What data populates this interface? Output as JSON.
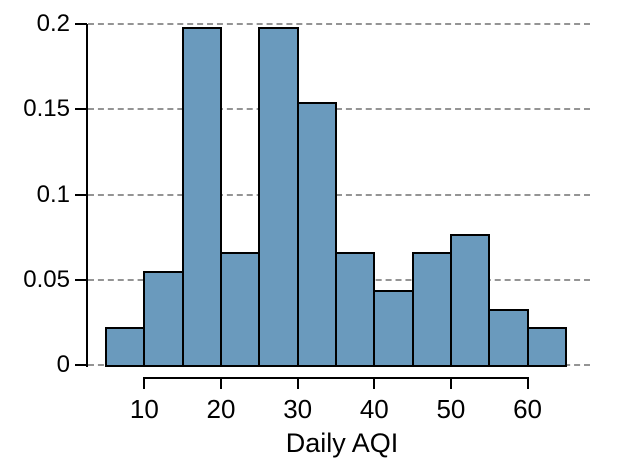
{
  "chart_data": {
    "type": "bar",
    "subtype": "histogram",
    "title": "",
    "xlabel": "Daily AQI",
    "ylabel": "",
    "bin_width": 5,
    "bin_start": 5,
    "bin_edges": [
      5,
      10,
      15,
      20,
      25,
      30,
      35,
      40,
      45,
      50,
      55,
      60,
      65
    ],
    "values": [
      0.022,
      0.055,
      0.198,
      0.066,
      0.198,
      0.154,
      0.066,
      0.044,
      0.066,
      0.077,
      0.033,
      0.022
    ],
    "xlim": [
      5,
      65
    ],
    "ylim": [
      0,
      0.2
    ],
    "x_ticks": [
      10,
      20,
      30,
      40,
      50,
      60
    ],
    "x_tick_labels": [
      "10",
      "20",
      "30",
      "40",
      "50",
      "60"
    ],
    "y_ticks": [
      0,
      0.05,
      0.1,
      0.15,
      0.2
    ],
    "y_tick_labels": [
      "0",
      "0.05",
      "0.1",
      "0.15",
      "0.2"
    ],
    "grid": "horizontal-dashed",
    "legend": "none",
    "colors": {
      "bar_fill": "#6a9abd",
      "bar_border": "#000000",
      "grid": "#949494",
      "axis": "#000000",
      "text": "#000000",
      "background": "#ffffff"
    }
  }
}
